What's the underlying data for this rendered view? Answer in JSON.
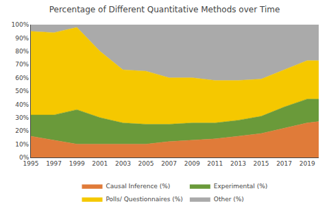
{
  "chart_data": {
    "type": "area",
    "stacked": true,
    "title": "Percentage of Different Quantitative Methods over Time",
    "x": [
      1995,
      1997,
      1999,
      2001,
      2003,
      2005,
      2007,
      2009,
      2011,
      2013,
      2015,
      2017,
      2019,
      2020
    ],
    "series": [
      {
        "name": "Causal Inference (%)",
        "color": "#E07B39",
        "values": [
          16,
          13,
          10,
          10,
          10,
          10,
          12,
          13,
          14,
          16,
          18,
          22,
          26,
          27
        ]
      },
      {
        "name": "Experimental (%)",
        "color": "#6A9A3A",
        "values": [
          16,
          19,
          26,
          20,
          16,
          15,
          13,
          13,
          12,
          12,
          13,
          16,
          18,
          17
        ]
      },
      {
        "name": "Polls/ Questionnaires (%)",
        "color": "#F5C800",
        "values": [
          63,
          62,
          62,
          50,
          40,
          40,
          35,
          34,
          32,
          30,
          28,
          28,
          29,
          29
        ]
      },
      {
        "name": "Other (%)",
        "color": "#AAAAAA",
        "values": [
          5,
          6,
          2,
          20,
          34,
          35,
          40,
          40,
          42,
          42,
          41,
          34,
          27,
          27
        ]
      }
    ],
    "xlim": [
      1995,
      2020
    ],
    "xticks": [
      1995,
      1997,
      1999,
      2001,
      2003,
      2005,
      2007,
      2009,
      2011,
      2013,
      2015,
      2017,
      2019
    ],
    "ylim": [
      0,
      100
    ],
    "yticks": [
      {
        "value": 0,
        "label": "0%"
      },
      {
        "value": 10,
        "label": "10%"
      },
      {
        "value": 20,
        "label": "20%"
      },
      {
        "value": 30,
        "label": "30%"
      },
      {
        "value": 40,
        "label": "40%"
      },
      {
        "value": 50,
        "label": "50%"
      },
      {
        "value": 60,
        "label": "60%"
      },
      {
        "value": 70,
        "label": "70%"
      },
      {
        "value": 80,
        "label": "80%"
      },
      {
        "value": 90,
        "label": "90%"
      },
      {
        "value": 100,
        "label": "100%"
      }
    ],
    "grid": "y",
    "legend": "bottom"
  }
}
